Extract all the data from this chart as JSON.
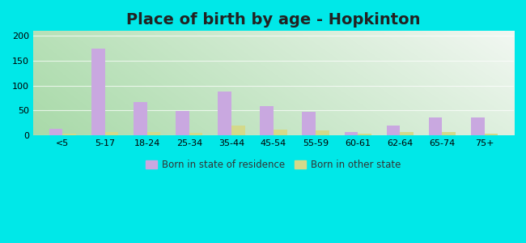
{
  "title": "Place of birth by age - Hopkinton",
  "categories": [
    "<5",
    "5-17",
    "18-24",
    "25-34",
    "35-44",
    "45-54",
    "55-59",
    "60-61",
    "62-64",
    "65-74",
    "75+"
  ],
  "born_in_state": [
    13,
    174,
    67,
    49,
    88,
    58,
    47,
    7,
    19,
    35,
    35
  ],
  "born_other_state": [
    3,
    7,
    6,
    4,
    19,
    11,
    10,
    3,
    6,
    7,
    3
  ],
  "color_state": "#c9a8e0",
  "color_other": "#d4d98a",
  "outer_bg": "#00e8e8",
  "ylim": [
    0,
    210
  ],
  "yticks": [
    0,
    50,
    100,
    150,
    200
  ],
  "bar_width": 0.32,
  "legend_label_state": "Born in state of residence",
  "legend_label_other": "Born in other state",
  "title_fontsize": 14,
  "tick_fontsize": 8,
  "title_color": "#222222",
  "grad_left": "#c8e8c8",
  "grad_right": "#f0faf0"
}
